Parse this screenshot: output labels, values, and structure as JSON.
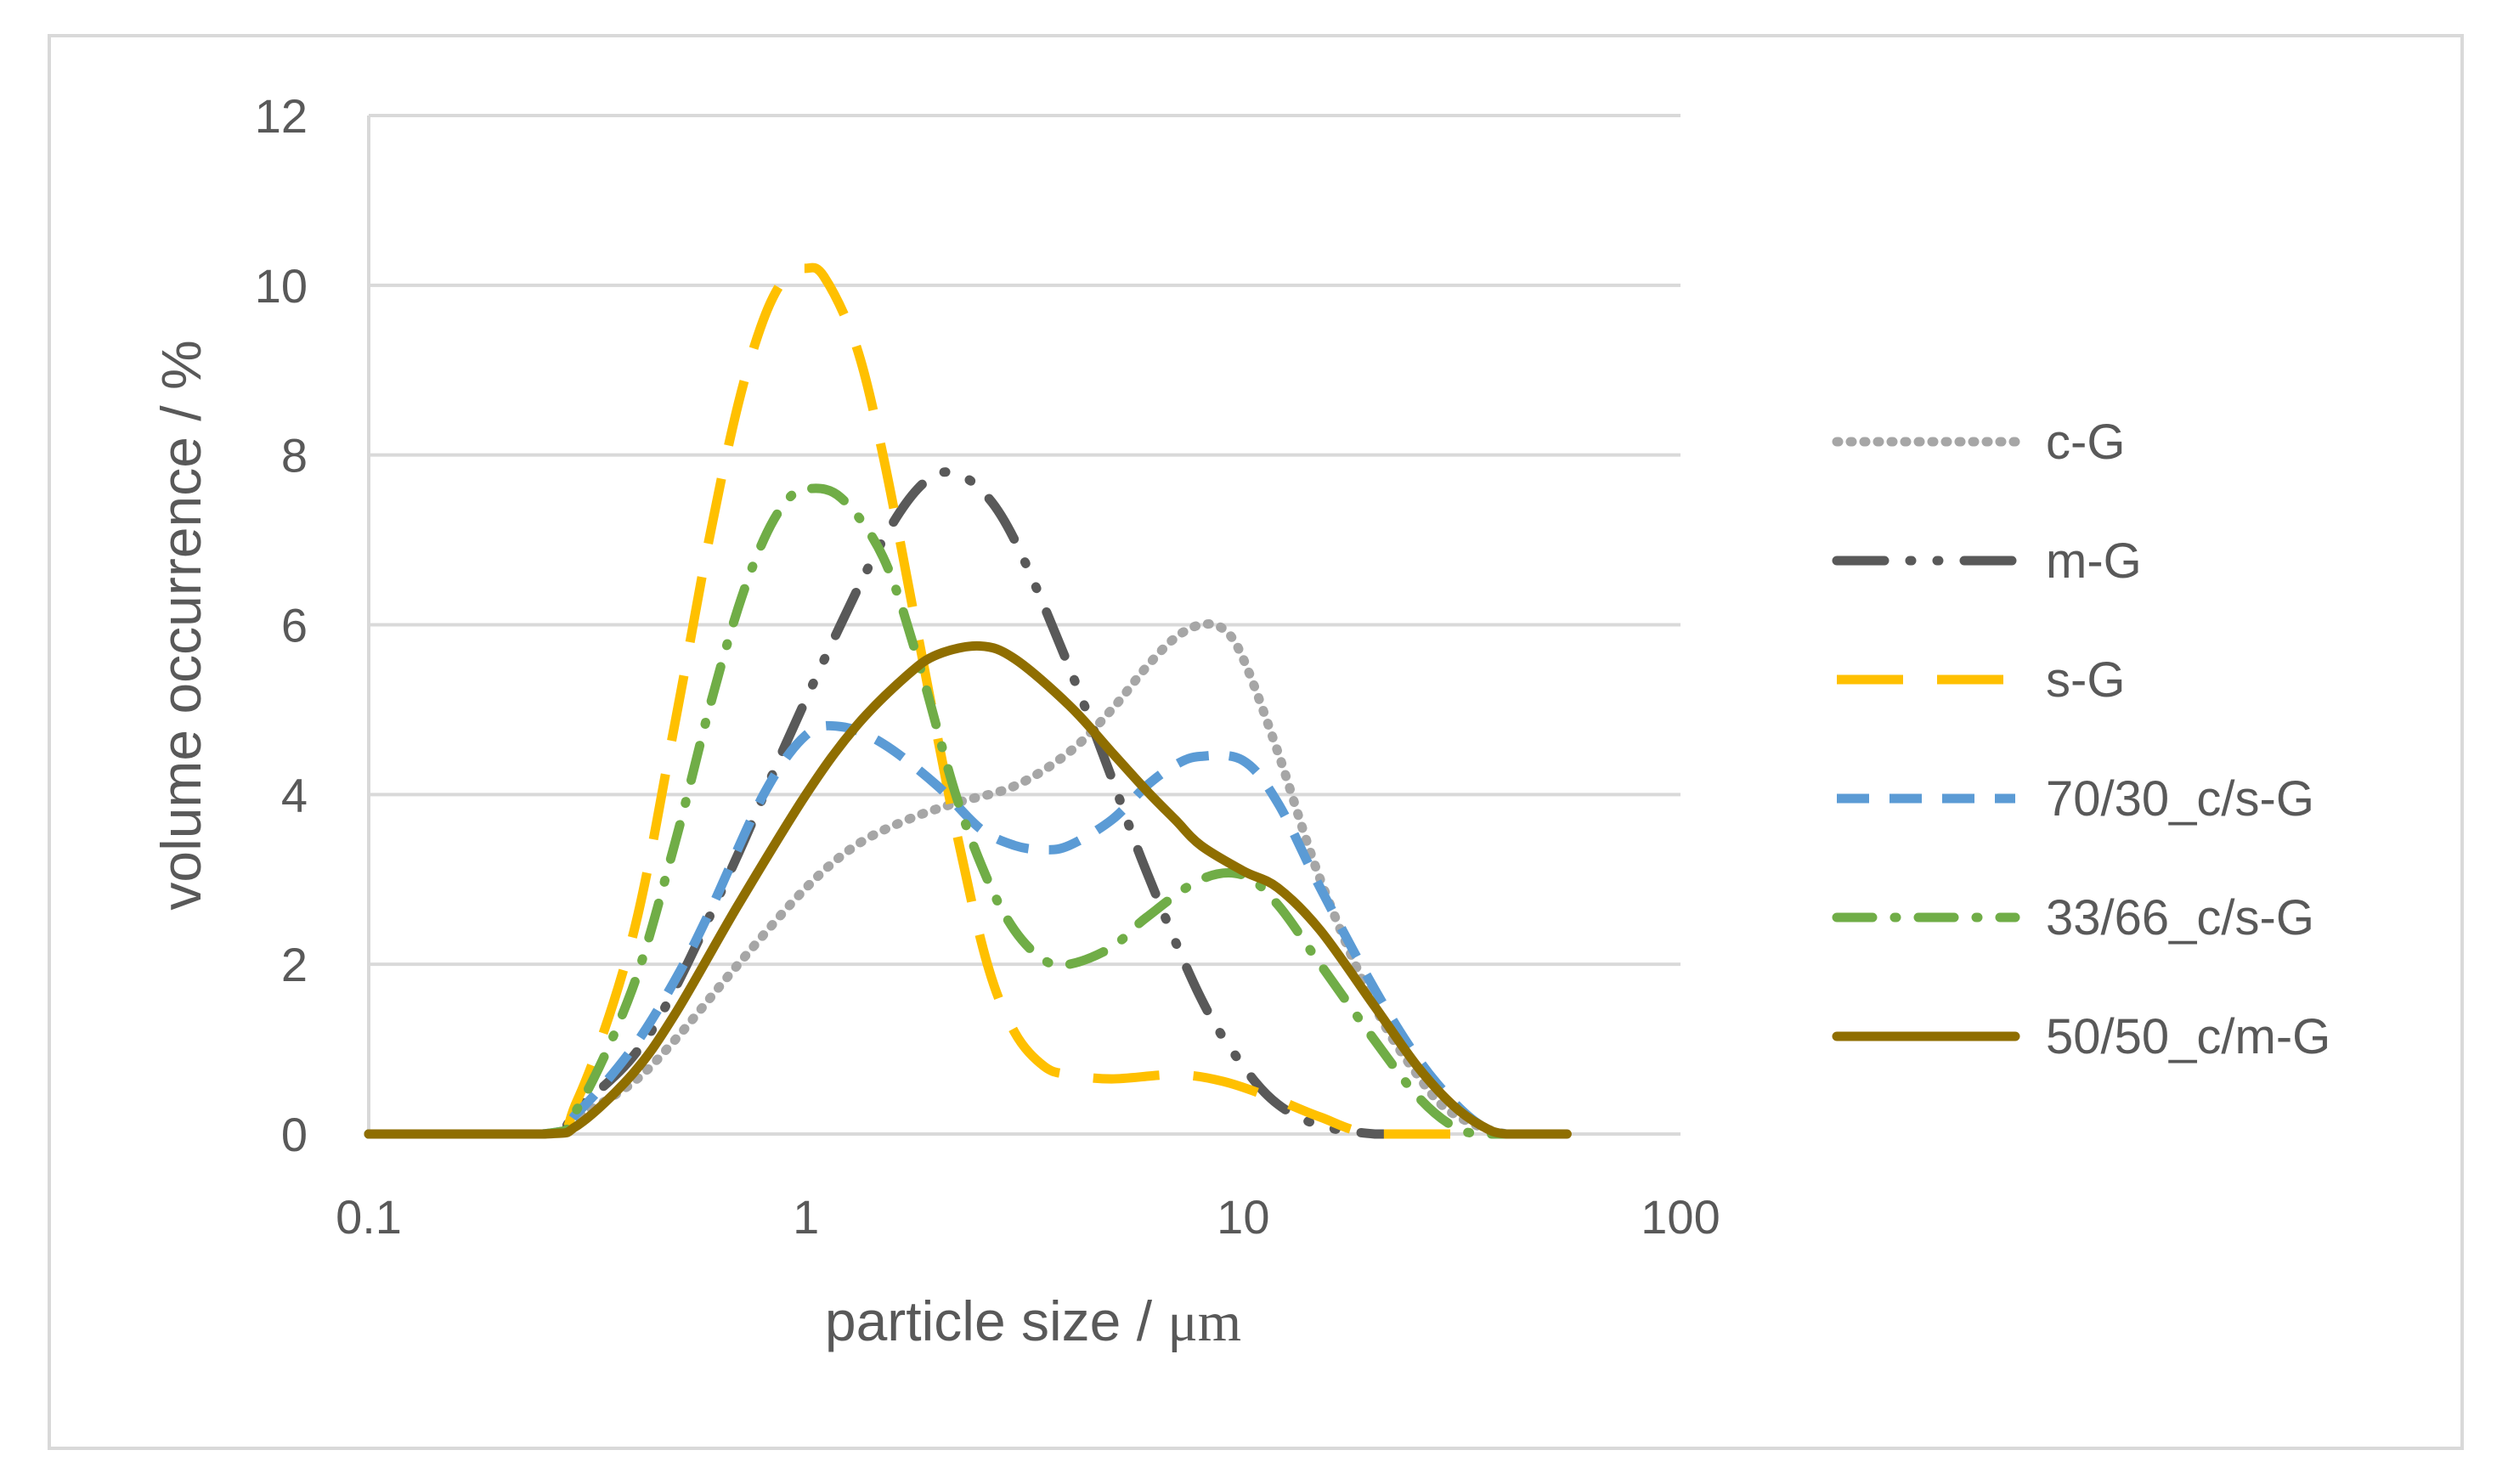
{
  "chart_data": {
    "type": "line",
    "title": "",
    "xlabel": "particle size / μm",
    "ylabel": "volume occurrence / %",
    "xscale": "log",
    "xlim": [
      0.1,
      100
    ],
    "ylim": [
      0,
      12
    ],
    "xticks": [
      0.1,
      1,
      10,
      100
    ],
    "xtick_labels": [
      "0.1",
      "1",
      "10",
      "100"
    ],
    "yticks": [
      0,
      2,
      4,
      6,
      8,
      10,
      12
    ],
    "ytick_labels": [
      "0",
      "2",
      "4",
      "6",
      "8",
      "10",
      "12"
    ],
    "grid": "horizontal",
    "legend_position": "right",
    "series": [
      {
        "name": "c-G",
        "color": "#a6a6a6",
        "dash": "dotted",
        "points": [
          [
            0.1,
            0
          ],
          [
            0.25,
            0
          ],
          [
            0.3,
            0.2
          ],
          [
            0.4,
            0.6
          ],
          [
            0.5,
            1.1
          ],
          [
            0.7,
            2.0
          ],
          [
            1.0,
            2.9
          ],
          [
            1.3,
            3.4
          ],
          [
            1.7,
            3.7
          ],
          [
            2.2,
            3.9
          ],
          [
            3.0,
            4.1
          ],
          [
            4.0,
            4.5
          ],
          [
            5.0,
            5.0
          ],
          [
            6.0,
            5.5
          ],
          [
            7.0,
            5.85
          ],
          [
            8.0,
            6.0
          ],
          [
            9.0,
            5.95
          ],
          [
            10.0,
            5.6
          ],
          [
            12.0,
            4.5
          ],
          [
            15.0,
            3.0
          ],
          [
            20.0,
            1.5
          ],
          [
            25.0,
            0.7
          ],
          [
            30.0,
            0.25
          ],
          [
            40.0,
            0
          ],
          [
            55.0,
            0
          ]
        ]
      },
      {
        "name": "m-G",
        "color": "#595959",
        "dash": "longdashdotdot",
        "points": [
          [
            0.1,
            0
          ],
          [
            0.25,
            0
          ],
          [
            0.3,
            0.3
          ],
          [
            0.4,
            0.9
          ],
          [
            0.5,
            1.7
          ],
          [
            0.7,
            3.3
          ],
          [
            0.9,
            4.6
          ],
          [
            1.2,
            6.0
          ],
          [
            1.5,
            7.0
          ],
          [
            1.8,
            7.6
          ],
          [
            2.1,
            7.8
          ],
          [
            2.5,
            7.6
          ],
          [
            3.0,
            7.0
          ],
          [
            4.0,
            5.5
          ],
          [
            5.0,
            4.2
          ],
          [
            6.0,
            3.1
          ],
          [
            8.0,
            1.6
          ],
          [
            10.0,
            0.8
          ],
          [
            12.0,
            0.35
          ],
          [
            15.0,
            0.1
          ],
          [
            20.0,
            0
          ],
          [
            25.0,
            0
          ]
        ]
      },
      {
        "name": "s-G",
        "color": "#ffc000",
        "dash": "longdash",
        "points": [
          [
            0.1,
            0
          ],
          [
            0.25,
            0
          ],
          [
            0.3,
            0.4
          ],
          [
            0.4,
            2.3
          ],
          [
            0.5,
            4.8
          ],
          [
            0.6,
            7.0
          ],
          [
            0.7,
            8.6
          ],
          [
            0.8,
            9.6
          ],
          [
            0.9,
            10.1
          ],
          [
            1.0,
            10.2
          ],
          [
            1.1,
            10.1
          ],
          [
            1.3,
            9.3
          ],
          [
            1.5,
            8.0
          ],
          [
            1.8,
            5.9
          ],
          [
            2.2,
            3.6
          ],
          [
            2.6,
            2.0
          ],
          [
            3.0,
            1.2
          ],
          [
            3.5,
            0.8
          ],
          [
            4.0,
            0.7
          ],
          [
            5.0,
            0.65
          ],
          [
            7.0,
            0.7
          ],
          [
            9.0,
            0.62
          ],
          [
            12.0,
            0.4
          ],
          [
            15.0,
            0.2
          ],
          [
            20.0,
            0
          ],
          [
            35.0,
            0
          ]
        ]
      },
      {
        "name": "70/30_c/s-G",
        "color": "#5b9bd5",
        "dash": "dashed",
        "points": [
          [
            0.1,
            0
          ],
          [
            0.25,
            0
          ],
          [
            0.3,
            0.25
          ],
          [
            0.4,
            1.0
          ],
          [
            0.5,
            1.8
          ],
          [
            0.6,
            2.6
          ],
          [
            0.8,
            4.0
          ],
          [
            1.0,
            4.7
          ],
          [
            1.2,
            4.8
          ],
          [
            1.5,
            4.6
          ],
          [
            2.0,
            4.1
          ],
          [
            2.5,
            3.6
          ],
          [
            3.0,
            3.4
          ],
          [
            3.5,
            3.35
          ],
          [
            4.0,
            3.4
          ],
          [
            5.0,
            3.7
          ],
          [
            6.0,
            4.1
          ],
          [
            7.0,
            4.35
          ],
          [
            8.0,
            4.45
          ],
          [
            10.0,
            4.4
          ],
          [
            12.0,
            3.9
          ],
          [
            15.0,
            2.9
          ],
          [
            20.0,
            1.7
          ],
          [
            25.0,
            0.9
          ],
          [
            30.0,
            0.4
          ],
          [
            35.0,
            0.1
          ],
          [
            40.0,
            0
          ],
          [
            55.0,
            0
          ]
        ]
      },
      {
        "name": "33/66_c/s-G",
        "color": "#70ad47",
        "dash": "dashdot",
        "points": [
          [
            0.1,
            0
          ],
          [
            0.25,
            0
          ],
          [
            0.3,
            0.3
          ],
          [
            0.4,
            1.7
          ],
          [
            0.5,
            3.4
          ],
          [
            0.6,
            5.0
          ],
          [
            0.7,
            6.2
          ],
          [
            0.8,
            7.0
          ],
          [
            0.9,
            7.45
          ],
          [
            1.0,
            7.6
          ],
          [
            1.2,
            7.5
          ],
          [
            1.5,
            6.8
          ],
          [
            1.8,
            5.6
          ],
          [
            2.2,
            4.0
          ],
          [
            2.6,
            3.0
          ],
          [
            3.0,
            2.4
          ],
          [
            3.5,
            2.05
          ],
          [
            4.0,
            2.0
          ],
          [
            5.0,
            2.2
          ],
          [
            6.0,
            2.55
          ],
          [
            8.0,
            3.0
          ],
          [
            10.0,
            3.05
          ],
          [
            12.0,
            2.7
          ],
          [
            15.0,
            2.0
          ],
          [
            20.0,
            1.1
          ],
          [
            25.0,
            0.45
          ],
          [
            30.0,
            0.1
          ],
          [
            35.0,
            0
          ],
          [
            50.0,
            0
          ]
        ]
      },
      {
        "name": "50/50_c/m-G",
        "color": "#8f6e00",
        "dash": "solid",
        "points": [
          [
            0.1,
            0
          ],
          [
            0.25,
            0
          ],
          [
            0.3,
            0.1
          ],
          [
            0.4,
            0.7
          ],
          [
            0.5,
            1.4
          ],
          [
            0.7,
            2.7
          ],
          [
            1.0,
            4.0
          ],
          [
            1.3,
            4.8
          ],
          [
            1.7,
            5.4
          ],
          [
            2.0,
            5.65
          ],
          [
            2.5,
            5.75
          ],
          [
            3.0,
            5.6
          ],
          [
            4.0,
            5.05
          ],
          [
            5.0,
            4.5
          ],
          [
            6.0,
            4.05
          ],
          [
            7.0,
            3.7
          ],
          [
            8.0,
            3.4
          ],
          [
            10.0,
            3.1
          ],
          [
            12.0,
            2.9
          ],
          [
            15.0,
            2.4
          ],
          [
            20.0,
            1.5
          ],
          [
            25.0,
            0.8
          ],
          [
            30.0,
            0.35
          ],
          [
            35.0,
            0.1
          ],
          [
            40.0,
            0
          ],
          [
            55.0,
            0
          ]
        ]
      }
    ]
  }
}
